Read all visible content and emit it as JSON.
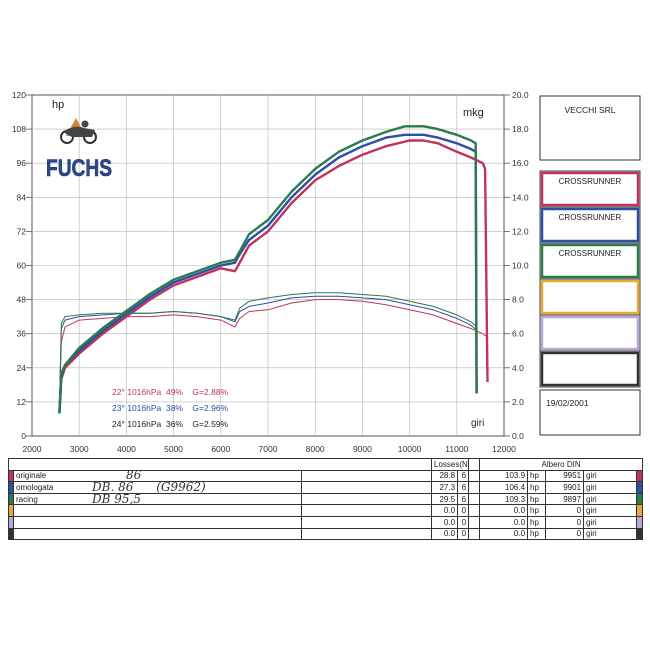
{
  "chart_data": {
    "type": "line",
    "xlim": [
      2000,
      12000
    ],
    "x_ticks": [
      "2000",
      "3000",
      "4000",
      "5000",
      "6000",
      "7000",
      "8000",
      "9000",
      "10000",
      "11000",
      "12000"
    ],
    "y_left": {
      "label": "hp",
      "lim": [
        0,
        120
      ],
      "ticks": [
        "0",
        "12",
        "24",
        "36",
        "48",
        "60",
        "72",
        "84",
        "96",
        "108",
        "120"
      ]
    },
    "y_right": {
      "label": "mkg",
      "lim": [
        0,
        20
      ],
      "ticks": [
        "0.0",
        "2.0",
        "4.0",
        "6.0",
        "8.0",
        "10.0",
        "12.0",
        "14.0",
        "16.0",
        "18.0",
        "20.0"
      ]
    },
    "x_unit_label": "giri",
    "series": [
      {
        "name": "originale",
        "color": "#c0335a",
        "power": {
          "x": [
            2580,
            2620,
            2700,
            3000,
            3500,
            4000,
            4500,
            5000,
            5500,
            6000,
            6300,
            6400,
            6600,
            7000,
            7500,
            8000,
            8500,
            9000,
            9500,
            10000,
            10300,
            10600,
            11000,
            11300,
            11550,
            11600,
            11650
          ],
          "y": [
            8,
            20,
            24,
            29,
            36,
            42,
            48,
            53,
            56,
            59,
            58,
            61,
            67,
            72,
            82,
            90,
            95,
            99,
            102,
            104,
            104,
            103,
            100,
            98,
            96,
            94,
            19
          ]
        },
        "torque": {
          "x": [
            2580,
            2620,
            2700,
            3000,
            3500,
            4000,
            4500,
            5000,
            5500,
            6000,
            6300,
            6400,
            6600,
            7000,
            7500,
            8000,
            8500,
            9000,
            9500,
            10000,
            10500,
            11000,
            11300,
            11550,
            11650
          ],
          "y": [
            1.5,
            5.5,
            6.4,
            6.8,
            6.9,
            7.0,
            7.0,
            7.1,
            7.0,
            6.8,
            6.4,
            6.9,
            7.3,
            7.4,
            7.8,
            8.0,
            8.0,
            7.9,
            7.7,
            7.4,
            7.1,
            6.6,
            6.3,
            6.0,
            5.8
          ]
        }
      },
      {
        "name": "omologata",
        "color": "#2e4fa5",
        "power": {
          "x": [
            2580,
            2620,
            2700,
            3000,
            3500,
            4000,
            4500,
            5000,
            5500,
            6000,
            6300,
            6400,
            6600,
            7000,
            7500,
            8000,
            8500,
            9000,
            9500,
            9900,
            10300,
            10600,
            11000,
            11300,
            11400,
            11420
          ],
          "y": [
            8,
            21,
            25,
            30,
            37,
            43,
            49,
            54,
            57,
            60,
            61,
            64,
            69,
            74,
            84,
            92,
            98,
            102,
            105,
            106,
            106,
            105,
            103,
            101,
            100,
            15
          ]
        },
        "torque": {
          "x": [
            2580,
            2620,
            2700,
            3000,
            3500,
            4000,
            4500,
            5000,
            5500,
            6000,
            6300,
            6400,
            6600,
            7000,
            7500,
            8000,
            8500,
            9000,
            9500,
            10000,
            10500,
            11000,
            11300,
            11420
          ],
          "y": [
            1.5,
            6.3,
            6.8,
            7.0,
            7.1,
            7.2,
            7.2,
            7.3,
            7.2,
            7.0,
            6.7,
            7.3,
            7.6,
            7.8,
            8.1,
            8.2,
            8.2,
            8.1,
            8.0,
            7.7,
            7.4,
            6.9,
            6.5,
            6.2
          ]
        }
      },
      {
        "name": "racing",
        "color": "#2c7a4e",
        "power": {
          "x": [
            2580,
            2620,
            2700,
            3000,
            3500,
            4000,
            4500,
            5000,
            5500,
            6000,
            6300,
            6400,
            6600,
            7000,
            7500,
            8000,
            8500,
            9000,
            9500,
            9900,
            10300,
            10600,
            11000,
            11300,
            11400,
            11420
          ],
          "y": [
            8,
            22,
            25,
            31,
            38,
            44,
            50,
            55,
            58,
            61,
            62,
            65,
            71,
            76,
            86,
            94,
            100,
            104,
            107,
            109,
            109,
            108,
            106,
            104,
            103,
            15
          ]
        },
        "torque": {
          "x": [
            2580,
            2620,
            2700,
            3000,
            3500,
            4000,
            4500,
            5000,
            5500,
            6000,
            6300,
            6400,
            6600,
            7000,
            7500,
            8000,
            8500,
            9000,
            9500,
            10000,
            10500,
            11000,
            11300,
            11420
          ],
          "y": [
            1.5,
            6.6,
            7.0,
            7.1,
            7.2,
            7.2,
            7.2,
            7.3,
            7.2,
            7.0,
            6.8,
            7.5,
            7.9,
            8.1,
            8.3,
            8.4,
            8.4,
            8.3,
            8.2,
            7.9,
            7.6,
            7.1,
            6.7,
            6.4
          ]
        }
      }
    ],
    "conditions": [
      {
        "text": "22° 1016hPa  49%    G=2.88%",
        "color": "#c0335a"
      },
      {
        "text": "23° 1016hPa  38%    G=2.96%",
        "color": "#2e4fa5"
      },
      {
        "text": "24° 1016hPa  36%    G=2.59%",
        "color": "#222222"
      }
    ]
  },
  "logo": {
    "brand": "FUCHS"
  },
  "side_panel": {
    "company": "VECCHI SRL",
    "date": "19/02/2001",
    "boxes": [
      {
        "label": "CROSSRUNNER",
        "color": "#c0335a"
      },
      {
        "label": "CROSSRUNNER",
        "color": "#2e4fa5"
      },
      {
        "label": "CROSSRUNNER",
        "color": "#2c7a4e"
      },
      {
        "label": "",
        "color": "#e8a93a"
      },
      {
        "label": "",
        "color": "#bba7d6"
      },
      {
        "label": "",
        "color": "#333333"
      }
    ]
  },
  "results": {
    "losses_header": "Losses(Nm)",
    "albero_header": "Albero DIN",
    "rows": [
      {
        "name": "originale",
        "note": "86",
        "color": "#c0335a",
        "loss": "28.8",
        "gear": "6",
        "hp": "103.9",
        "hp_unit": "hp",
        "rpm": "9951",
        "rpm_unit": "giri"
      },
      {
        "name": "omologata",
        "note": "DB. 86      (G9962)",
        "color": "#2e4fa5",
        "loss": "27.3",
        "gear": "6",
        "hp": "106.4",
        "hp_unit": "hp",
        "rpm": "9901",
        "rpm_unit": "giri"
      },
      {
        "name": "racing",
        "note": "DB 95,5",
        "color": "#2c7a4e",
        "loss": "29.5",
        "gear": "6",
        "hp": "109.3",
        "hp_unit": "hp",
        "rpm": "9897",
        "rpm_unit": "giri"
      },
      {
        "name": "",
        "note": "",
        "color": "#e8a93a",
        "loss": "0.0",
        "gear": "0",
        "hp": "0.0",
        "hp_unit": "hp",
        "rpm": "0",
        "rpm_unit": "giri"
      },
      {
        "name": "",
        "note": "",
        "color": "#bba7d6",
        "loss": "0.0",
        "gear": "0",
        "hp": "0.0",
        "hp_unit": "hp",
        "rpm": "0",
        "rpm_unit": "giri"
      },
      {
        "name": "",
        "note": "",
        "color": "#333333",
        "loss": "0.0",
        "gear": "0",
        "hp": "0.0",
        "hp_unit": "hp",
        "rpm": "0",
        "rpm_unit": "giri"
      }
    ]
  }
}
